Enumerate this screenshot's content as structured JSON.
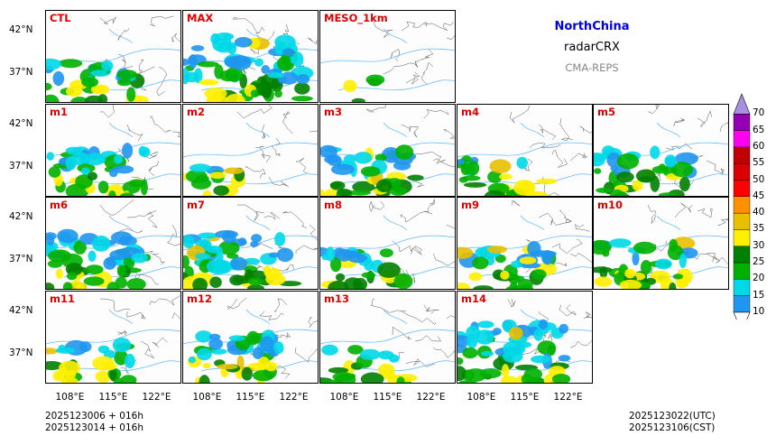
{
  "header": {
    "region": "NorthChina",
    "variable": "radarCRX",
    "system": "CMA-REPS",
    "region_color": "#0000dd",
    "system_color": "#888888"
  },
  "chart_data": {
    "type": "heatmap",
    "panels": [
      "CTL",
      "MAX",
      "MESO_1km",
      "m1",
      "m2",
      "m3",
      "m4",
      "m5",
      "m6",
      "m7",
      "m8",
      "m9",
      "m10",
      "m11",
      "m12",
      "m13",
      "m14"
    ],
    "y_tick_labels": [
      "42°N",
      "37°N"
    ],
    "x_tick_labels": [
      "108°E",
      "115°E",
      "122°E"
    ],
    "x_ticks_deg": [
      108,
      115,
      122
    ],
    "y_ticks_deg": [
      42,
      37
    ],
    "xlim": [
      104,
      126
    ],
    "ylim": [
      33.5,
      44.5
    ],
    "colorbar": {
      "levels": [
        10,
        15,
        20,
        25,
        30,
        35,
        40,
        45,
        50,
        55,
        60,
        65,
        70
      ],
      "labels": [
        "10",
        "15",
        "20",
        "25",
        "30",
        "35",
        "40",
        "45",
        "50",
        "55",
        "60",
        "65",
        "70"
      ],
      "colors": [
        "#1f96f0",
        "#00d8e8",
        "#00b000",
        "#008000",
        "#fff000",
        "#e8c000",
        "#ff9000",
        "#ff0000",
        "#d80000",
        "#c00000",
        "#ff00f0",
        "#9600b4",
        "#a890e0"
      ],
      "extend": "both"
    },
    "coverage_fraction": {
      "CTL": 0.22,
      "MAX": 0.55,
      "MESO_1km": 0.03,
      "m1": 0.3,
      "m2": 0.1,
      "m3": 0.3,
      "m4": 0.18,
      "m5": 0.28,
      "m6": 0.38,
      "m7": 0.4,
      "m8": 0.2,
      "m9": 0.25,
      "m10": 0.3,
      "m11": 0.2,
      "m12": 0.3,
      "m13": 0.15,
      "m14": 0.45
    }
  },
  "footer": {
    "init_utc": "2025123006  +  016h",
    "init_cst": "2025123014  +  016h",
    "valid_utc": "2025123022(UTC)",
    "valid_cst": "2025123106(CST)"
  }
}
